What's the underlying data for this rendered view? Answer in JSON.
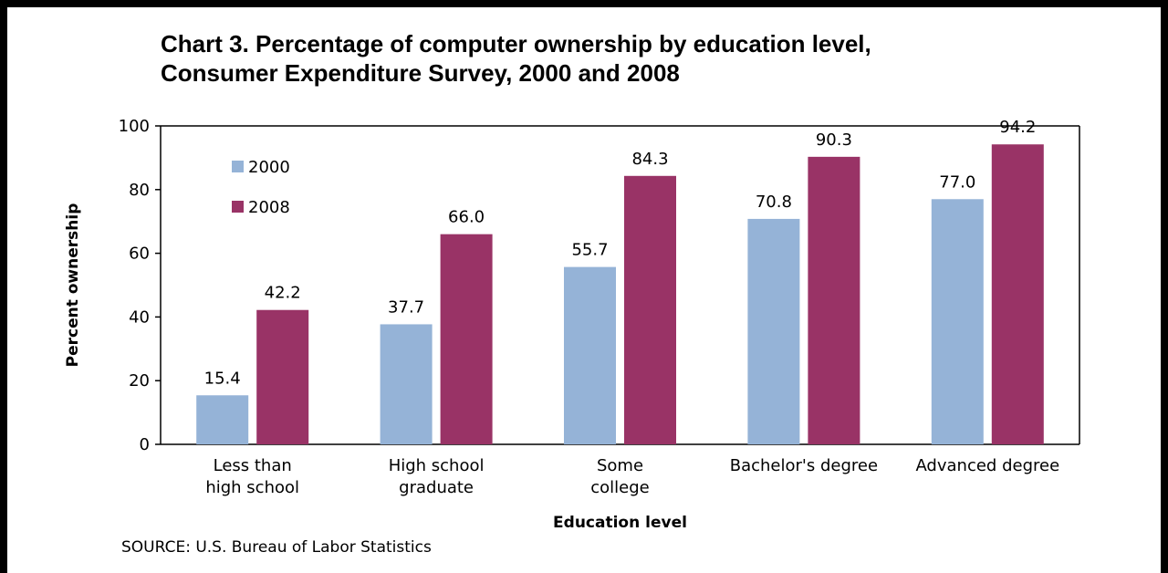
{
  "chart_data": {
    "type": "bar",
    "title_lines": [
      "Chart 3. Percentage of computer ownership by education level,",
      "Consumer Expenditure Survey, 2000 and 2008"
    ],
    "categories": [
      [
        "Less than",
        "high school"
      ],
      [
        "High school",
        "graduate"
      ],
      [
        "Some",
        "college"
      ],
      [
        "Bachelor's degree"
      ],
      [
        "Advanced degree"
      ]
    ],
    "series": [
      {
        "name": "2000",
        "color": "#95B3D7",
        "values": [
          15.4,
          37.7,
          55.7,
          70.8,
          77.0
        ],
        "labels": [
          "15.4",
          "37.7",
          "55.7",
          "70.8",
          "77.0"
        ]
      },
      {
        "name": "2008",
        "color": "#993366",
        "values": [
          42.2,
          66.0,
          84.3,
          90.3,
          94.2
        ],
        "labels": [
          "42.2",
          "66.0",
          "84.3",
          "90.3",
          "94.2"
        ]
      }
    ],
    "xlabel": "Education level",
    "ylabel": "Percent ownership",
    "ylim": [
      0,
      100
    ],
    "yticks": [
      "0",
      "20",
      "40",
      "60",
      "80",
      "100"
    ],
    "grid": false,
    "legend_position": "top-left"
  },
  "source": "SOURCE:  U.S. Bureau of Labor Statistics"
}
